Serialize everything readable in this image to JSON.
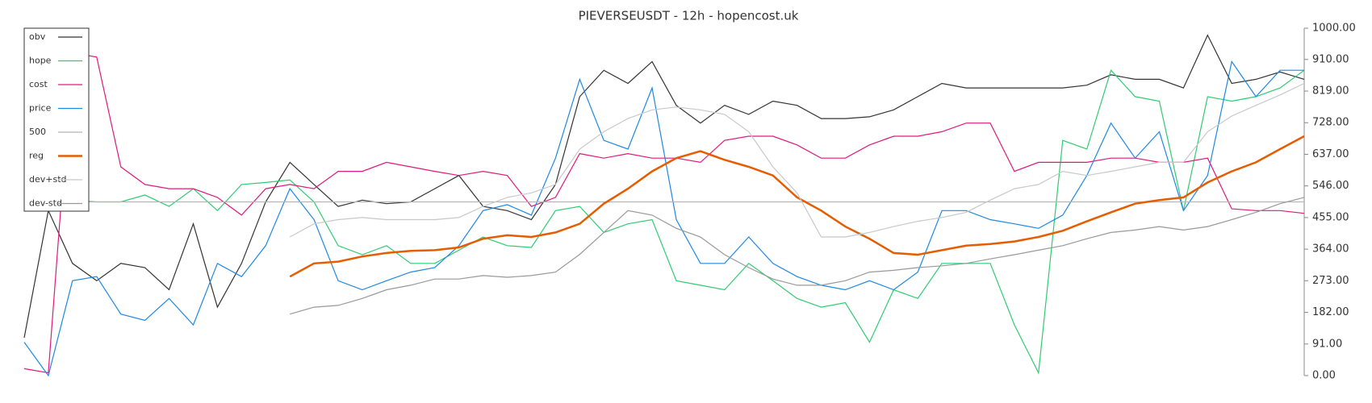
{
  "chart_data": {
    "type": "line",
    "title": "PIEVERSEUSDT - 12h - hopencost.uk",
    "ylim": [
      0,
      1000
    ],
    "yticks": [
      {
        "value": 0,
        "label": "0.00"
      },
      {
        "value": 91,
        "label": "91.00"
      },
      {
        "value": 182,
        "label": "182.00"
      },
      {
        "value": 273,
        "label": "273.00"
      },
      {
        "value": 364,
        "label": "364.00"
      },
      {
        "value": 455,
        "label": "455.00"
      },
      {
        "value": 546,
        "label": "546.00"
      },
      {
        "value": 637,
        "label": "637.00"
      },
      {
        "value": 728,
        "label": "728.00"
      },
      {
        "value": 819,
        "label": "819.00"
      },
      {
        "value": 910,
        "label": "910.00"
      },
      {
        "value": 1000,
        "label": "1000.00"
      }
    ],
    "legend": "upper left",
    "series": [
      {
        "name": "obv",
        "color": "#333333",
        "values": [
          109,
          475,
          323,
          273,
          323,
          311,
          247,
          437,
          197,
          323,
          500,
          614,
          550,
          487,
          505,
          495,
          500,
          538,
          576,
          487,
          475,
          449,
          550,
          803,
          879,
          841,
          904,
          778,
          727,
          778,
          752,
          790,
          778,
          740,
          740,
          745,
          765,
          803,
          841,
          828,
          828,
          828,
          828,
          828,
          836,
          866,
          853,
          853,
          828,
          980,
          841,
          853,
          874,
          853
        ]
      },
      {
        "name": "hope",
        "color": "#2ecc71",
        "values": [
          null,
          513,
          505,
          500,
          500,
          520,
          487,
          538,
          475,
          550,
          556,
          563,
          500,
          374,
          348,
          374,
          323,
          323,
          361,
          399,
          374,
          369,
          475,
          487,
          412,
          437,
          449,
          273,
          260,
          247,
          323,
          273,
          222,
          197,
          210,
          96,
          247,
          222,
          323,
          323,
          323,
          146,
          8,
          677,
          652,
          879,
          803,
          790,
          475,
          803,
          790,
          803,
          828,
          879
        ]
      },
      {
        "name": "cost",
        "color": "#e0197d",
        "values": [
          20,
          8,
          929,
          917,
          601,
          550,
          538,
          538,
          513,
          462,
          538,
          550,
          538,
          588,
          588,
          614,
          601,
          588,
          576,
          588,
          576,
          487,
          513,
          639,
          626,
          639,
          626,
          626,
          614,
          677,
          689,
          689,
          664,
          626,
          626,
          664,
          689,
          689,
          702,
          727,
          727,
          588,
          614,
          614,
          614,
          626,
          626,
          614,
          614,
          626,
          480,
          475,
          475,
          467
        ]
      },
      {
        "name": "price",
        "color": "#1e88e5",
        "values": [
          96,
          0,
          273,
          285,
          177,
          159,
          222,
          146,
          323,
          285,
          374,
          538,
          449,
          273,
          247,
          273,
          298,
          311,
          374,
          475,
          492,
          462,
          626,
          853,
          677,
          652,
          828,
          449,
          323,
          323,
          399,
          323,
          285,
          260,
          247,
          273,
          247,
          298,
          475,
          475,
          449,
          437,
          424,
          462,
          576,
          727,
          626,
          702,
          475,
          576,
          904,
          803,
          879,
          879
        ]
      },
      {
        "name": "500",
        "color": "#b5b5b5",
        "values": [
          500,
          500,
          500,
          500,
          500,
          500,
          500,
          500,
          500,
          500,
          500,
          500,
          500,
          500,
          500,
          500,
          500,
          500,
          500,
          500,
          500,
          500,
          500,
          500,
          500,
          500,
          500,
          500,
          500,
          500,
          500,
          500,
          500,
          500,
          500,
          500,
          500,
          500,
          500,
          500,
          500,
          500,
          500,
          500,
          500,
          500,
          500,
          500,
          500,
          500,
          500,
          500,
          500,
          500
        ]
      },
      {
        "name": "reg",
        "color": "#e65c00",
        "values": [
          null,
          null,
          null,
          null,
          null,
          null,
          null,
          null,
          null,
          null,
          null,
          285,
          323,
          328,
          343,
          353,
          359,
          361,
          369,
          394,
          404,
          399,
          412,
          437,
          495,
          538,
          588,
          626,
          646,
          621,
          601,
          576,
          513,
          475,
          429,
          394,
          353,
          348,
          361,
          374,
          379,
          386,
          399,
          417,
          444,
          470,
          495,
          505,
          513,
          556,
          588,
          614,
          652,
          689
        ]
      },
      {
        "name": "dev+std",
        "color": "#c8c8c8",
        "values": [
          null,
          null,
          null,
          null,
          null,
          null,
          null,
          null,
          null,
          null,
          null,
          399,
          437,
          449,
          455,
          449,
          449,
          449,
          455,
          487,
          513,
          526,
          550,
          652,
          702,
          740,
          765,
          773,
          765,
          752,
          702,
          601,
          526,
          399,
          399,
          412,
          429,
          444,
          455,
          470,
          505,
          538,
          550,
          588,
          576,
          588,
          601,
          614,
          614,
          702,
          747,
          778,
          808,
          841
        ]
      },
      {
        "name": "dev-std",
        "color": "#999999",
        "values": [
          null,
          null,
          null,
          null,
          null,
          null,
          null,
          null,
          null,
          null,
          null,
          177,
          197,
          202,
          222,
          247,
          260,
          278,
          278,
          288,
          283,
          288,
          298,
          349,
          412,
          475,
          462,
          424,
          399,
          348,
          311,
          278,
          260,
          260,
          273,
          298,
          303,
          311,
          316,
          323,
          336,
          348,
          361,
          374,
          394,
          412,
          419,
          429,
          419,
          429,
          449,
          470,
          495,
          513
        ]
      }
    ]
  }
}
